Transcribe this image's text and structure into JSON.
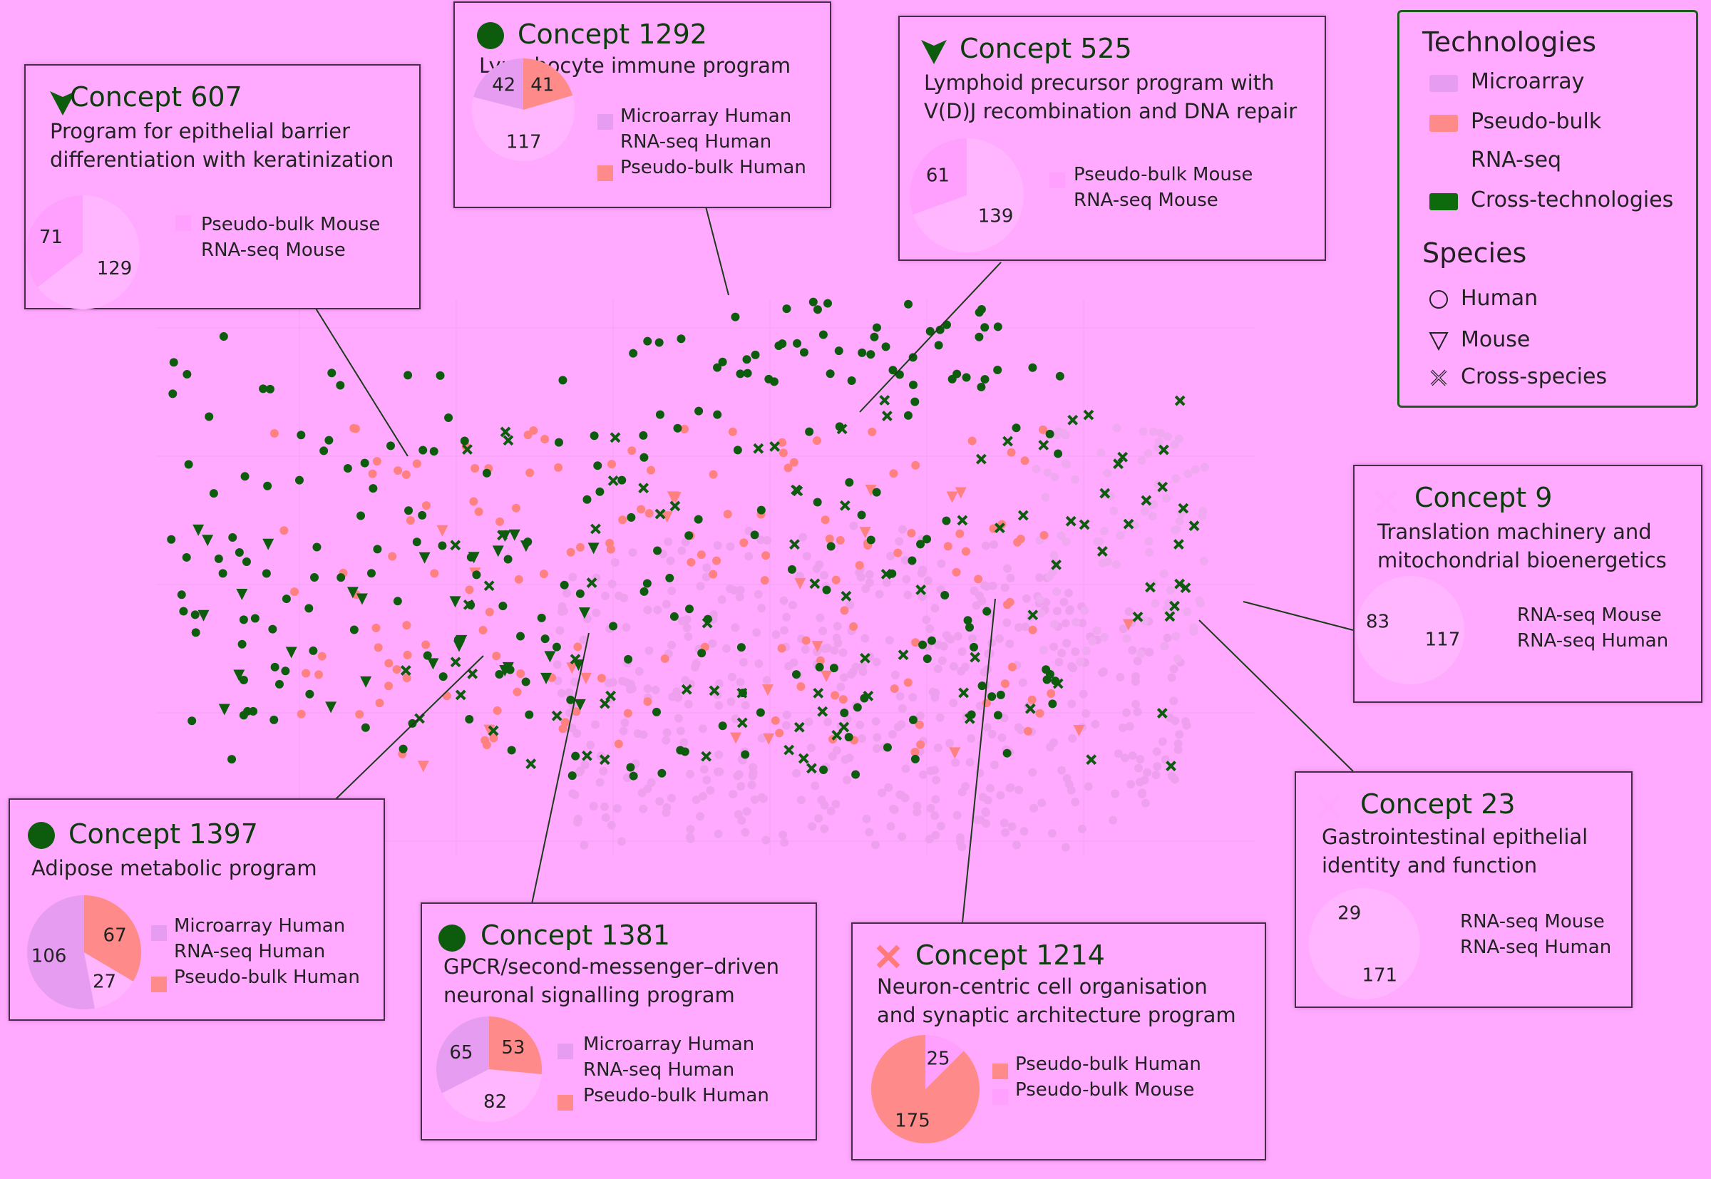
{
  "colors": {
    "microarray": "#e69cf0",
    "pseudobulk": "#ff8a8a",
    "rnaseq": "#ffaaff",
    "cross": "#0d6a0d",
    "pink_point": "#eea0ee",
    "red_point": "#ff8080",
    "dark": "#0d5c0d"
  },
  "legend": {
    "tech_title": "Technologies",
    "tech_items": [
      "Microarray",
      "Pseudo-bulk",
      "RNA-seq",
      "Cross-technologies"
    ],
    "species_title": "Species",
    "species_items": [
      "Human",
      "Mouse",
      "Cross-species"
    ]
  },
  "chart_data": {
    "type": "scatter",
    "title": "",
    "concepts": [
      {
        "id": "607",
        "title": "Concept 607",
        "marker": "mouse",
        "desc": [
          "Program for epithelial barrier",
          "differentiation with keratinization"
        ],
        "pie": [
          {
            "label": "Pseudo-bulk Mouse",
            "value": 71,
            "tech": "rnaseq_mid"
          },
          {
            "label": "RNA-seq Mouse",
            "value": 129,
            "tech": "rnaseq"
          }
        ]
      },
      {
        "id": "1292",
        "title": "Concept 1292",
        "marker": "human",
        "desc": [
          "Lymphocyte immune program"
        ],
        "pie": [
          {
            "label": "Microarray Human",
            "value": 42,
            "tech": "microarray"
          },
          {
            "label": "RNA-seq Human",
            "value": 117,
            "tech": "rnaseq"
          },
          {
            "label": "Pseudo-bulk Human",
            "value": 41,
            "tech": "pseudobulk"
          }
        ]
      },
      {
        "id": "525",
        "title": "Concept 525",
        "marker": "mouse",
        "desc": [
          "Lymphoid precursor program with",
          "V(D)J recombination and DNA repair"
        ],
        "pie": [
          {
            "label": "Pseudo-bulk Mouse",
            "value": 61,
            "tech": "rnaseq_mid"
          },
          {
            "label": "RNA-seq Mouse",
            "value": 139,
            "tech": "rnaseq"
          }
        ]
      },
      {
        "id": "9",
        "title": "Concept 9",
        "marker": "cross",
        "desc": [
          "Translation machinery and",
          "mitochondrial bioenergetics"
        ],
        "pie": [
          {
            "label": "RNA-seq Mouse",
            "value": 83,
            "tech": "rnaseq"
          },
          {
            "label": "RNA-seq Human",
            "value": 117,
            "tech": "rnaseq"
          }
        ]
      },
      {
        "id": "23",
        "title": "Concept 23",
        "marker": "cross",
        "desc": [
          "Gastrointestinal epithelial",
          "identity and function"
        ],
        "pie": [
          {
            "label": "RNA-seq Mouse",
            "value": 29,
            "tech": "rnaseq"
          },
          {
            "label": "RNA-seq Human",
            "value": 171,
            "tech": "rnaseq"
          }
        ]
      },
      {
        "id": "1397",
        "title": "Concept 1397",
        "marker": "human",
        "desc": [
          "Adipose metabolic program"
        ],
        "pie": [
          {
            "label": "Microarray Human",
            "value": 106,
            "tech": "microarray"
          },
          {
            "label": "RNA-seq Human",
            "value": 27,
            "tech": "rnaseq"
          },
          {
            "label": "Pseudo-bulk Human",
            "value": 67,
            "tech": "pseudobulk"
          }
        ]
      },
      {
        "id": "1381",
        "title": "Concept 1381",
        "marker": "human",
        "desc": [
          "GPCR/second-messenger–driven",
          "neuronal signalling program"
        ],
        "pie": [
          {
            "label": "Microarray Human",
            "value": 65,
            "tech": "microarray"
          },
          {
            "label": "RNA-seq Human",
            "value": 82,
            "tech": "rnaseq"
          },
          {
            "label": "Pseudo-bulk Human",
            "value": 53,
            "tech": "pseudobulk"
          }
        ]
      },
      {
        "id": "1214",
        "title": "Concept 1214",
        "marker": "crossred",
        "desc": [
          "Neuron-centric cell organisation",
          "and synaptic architecture program"
        ],
        "pie": [
          {
            "label": "Pseudo-bulk Human",
            "value": 175,
            "tech": "pseudobulk"
          },
          {
            "label": "Pseudo-bulk Mouse",
            "value": 25,
            "tech": "rnaseq_mid"
          }
        ]
      }
    ]
  }
}
